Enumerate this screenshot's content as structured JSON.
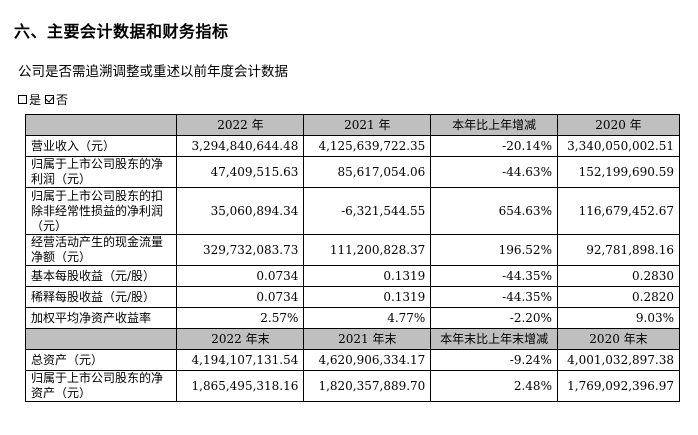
{
  "heading": "六、主要会计数据和财务指标",
  "question": "公司是否需追溯调整或重述以前年度会计数据",
  "options": {
    "yes": "是",
    "no": "否"
  },
  "table1": {
    "headers": [
      "",
      "2022 年",
      "2021 年",
      "本年比上年增减",
      "2020 年"
    ],
    "rows": [
      [
        "营业收入（元）",
        "3,294,840,644.48",
        "4,125,639,722.35",
        "-20.14%",
        "3,340,050,002.51"
      ],
      [
        "归属于上市公司股东的净利润（元）",
        "47,409,515.63",
        "85,617,054.06",
        "-44.63%",
        "152,199,690.59"
      ],
      [
        "归属于上市公司股东的扣除非经常性损益的净利润（元）",
        "35,060,894.34",
        "-6,321,544.55",
        "654.63%",
        "116,679,452.67"
      ],
      [
        "经营活动产生的现金流量净额（元）",
        "329,732,083.73",
        "111,200,828.37",
        "196.52%",
        "92,781,898.16"
      ],
      [
        "基本每股收益（元/股）",
        "0.0734",
        "0.1319",
        "-44.35%",
        "0.2830"
      ],
      [
        "稀释每股收益（元/股）",
        "0.0734",
        "0.1319",
        "-44.35%",
        "0.2820"
      ],
      [
        "加权平均净资产收益率",
        "2.57%",
        "4.77%",
        "-2.20%",
        "9.03%"
      ]
    ]
  },
  "table2": {
    "headers": [
      "",
      "2022 年末",
      "2021 年末",
      "本年末比上年末增减",
      "2020 年末"
    ],
    "rows": [
      [
        "总资产（元）",
        "4,194,107,131.54",
        "4,620,906,334.17",
        "-9.24%",
        "4,001,032,897.38"
      ],
      [
        "归属于上市公司股东的净资产（元）",
        "1,865,495,318.16",
        "1,820,357,889.70",
        "2.48%",
        "1,769,092,396.97"
      ]
    ]
  }
}
